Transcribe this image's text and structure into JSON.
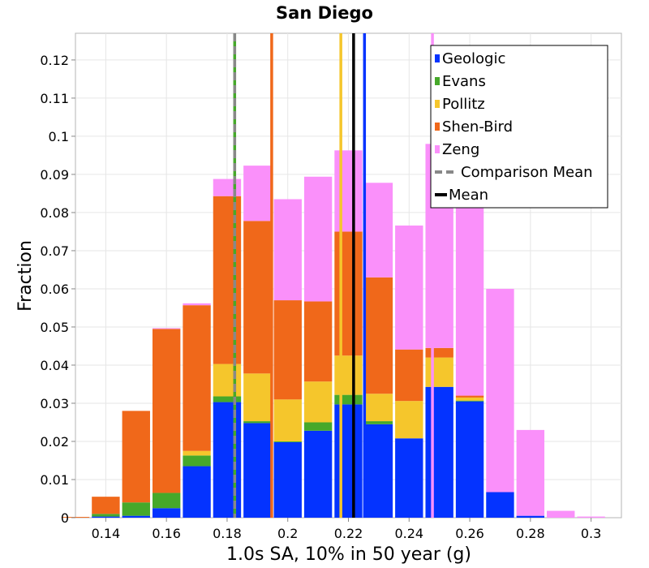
{
  "chart_data": {
    "type": "bar",
    "stacked": true,
    "title": "San Diego",
    "xlabel": "1.0s SA, 10% in 50 year (g)",
    "ylabel": "Fraction",
    "xlim": [
      0.13,
      0.31
    ],
    "ylim": [
      0,
      0.127
    ],
    "bin_width": 0.01,
    "x_ticks": [
      0.14,
      0.16,
      0.18,
      0.2,
      0.22,
      0.24,
      0.26,
      0.28,
      0.3
    ],
    "x_tick_labels": [
      "0.14",
      "0.16",
      "0.18",
      "0.2",
      "0.22",
      "0.24",
      "0.26",
      "0.28",
      "0.3"
    ],
    "y_ticks": [
      0,
      0.01,
      0.02,
      0.03,
      0.04,
      0.05,
      0.06,
      0.07,
      0.08,
      0.09,
      0.1,
      0.11,
      0.12
    ],
    "y_tick_labels": [
      "0",
      "0.01",
      "0.02",
      "0.03",
      "0.04",
      "0.05",
      "0.06",
      "0.07",
      "0.08",
      "0.09",
      "0.1",
      "0.11",
      "0.12"
    ],
    "bins": [
      0.13,
      0.14,
      0.15,
      0.16,
      0.17,
      0.18,
      0.19,
      0.2,
      0.21,
      0.22,
      0.23,
      0.24,
      0.25,
      0.26,
      0.27,
      0.28,
      0.29,
      0.3
    ],
    "series": [
      {
        "name": "Geologic",
        "color": "#0433ff",
        "values": [
          0,
          0.0003,
          0.0005,
          0.0025,
          0.0135,
          0.0303,
          0.0248,
          0.0198,
          0.0228,
          0.0297,
          0.0245,
          0.0208,
          0.0343,
          0.0305,
          0.0067,
          0.0005,
          0,
          0
        ]
      },
      {
        "name": "Evans",
        "color": "#46a82a",
        "values": [
          0,
          0.0007,
          0.0035,
          0.004,
          0.0028,
          0.0015,
          0.0005,
          0.0002,
          0.0022,
          0.0025,
          0.0008,
          0,
          0,
          0.0002,
          0,
          0,
          0,
          0
        ]
      },
      {
        "name": "Pollitz",
        "color": "#f5c62c",
        "values": [
          0,
          0,
          0,
          0,
          0.0012,
          0.0085,
          0.0125,
          0.011,
          0.0107,
          0.0103,
          0.0072,
          0.0098,
          0.0077,
          0.0008,
          0,
          0,
          0,
          0
        ]
      },
      {
        "name": "Shen-Bird",
        "color": "#f0681a",
        "values": [
          0.0002,
          0.0045,
          0.024,
          0.043,
          0.0382,
          0.044,
          0.04,
          0.026,
          0.021,
          0.0325,
          0.0305,
          0.0135,
          0.0025,
          0.0005,
          0,
          0,
          0,
          0
        ]
      },
      {
        "name": "Zeng",
        "color": "#fa90fa",
        "values": [
          0,
          0,
          0,
          0.0002,
          0.0005,
          0.0045,
          0.0145,
          0.0265,
          0.0327,
          0.0213,
          0.0248,
          0.0325,
          0.0535,
          0.0525,
          0.0533,
          0.0225,
          0.0018,
          0.0003
        ]
      }
    ],
    "vertical_lines": [
      {
        "name": "Evans",
        "x": 0.1825,
        "color": "#46a82a",
        "style": "solid"
      },
      {
        "name": "Shen-Bird",
        "x": 0.1947,
        "color": "#f0681a",
        "style": "solid"
      },
      {
        "name": "Pollitz",
        "x": 0.2175,
        "color": "#f5c62c",
        "style": "solid"
      },
      {
        "name": "Geologic",
        "x": 0.2253,
        "color": "#0433ff",
        "style": "solid"
      },
      {
        "name": "Zeng",
        "x": 0.2477,
        "color": "#fa90fa",
        "style": "solid"
      },
      {
        "name": "Comparison Mean",
        "x": 0.1825,
        "color": "#888888",
        "style": "dashed"
      },
      {
        "name": "Mean",
        "x": 0.2217,
        "color": "#000000",
        "style": "solid"
      }
    ],
    "legend": {
      "position": "top-right",
      "entries": [
        {
          "label": "Geologic",
          "kind": "box",
          "color": "#0433ff"
        },
        {
          "label": "Evans",
          "kind": "box",
          "color": "#46a82a"
        },
        {
          "label": "Pollitz",
          "kind": "box",
          "color": "#f5c62c"
        },
        {
          "label": "Shen-Bird",
          "kind": "box",
          "color": "#f0681a"
        },
        {
          "label": "Zeng",
          "kind": "box",
          "color": "#fa90fa"
        },
        {
          "label": "Comparison Mean",
          "kind": "dashed",
          "color": "#888888"
        },
        {
          "label": "Mean",
          "kind": "line",
          "color": "#000000"
        }
      ]
    },
    "grid": true
  }
}
